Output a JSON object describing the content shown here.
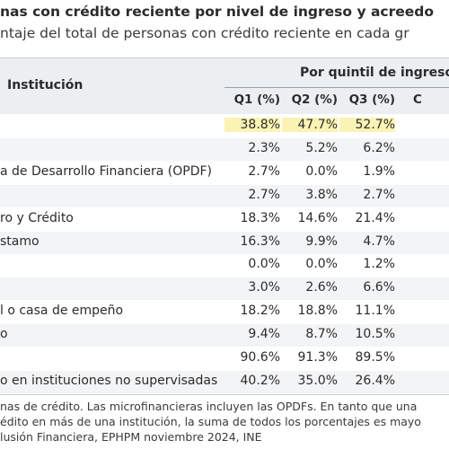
{
  "title": "nas con crédito reciente por nivel de ingreso y acreedo",
  "subtitle": "ntaje del total de personas con crédito reciente en cada gr",
  "header": {
    "institucion": "Institución",
    "quintil": "Por quintil de ingreso",
    "columns": [
      "Q1 (%)",
      "Q2 (%)",
      "Q3 (%)",
      "C"
    ]
  },
  "rows": [
    {
      "name": "",
      "values": [
        "38.8%",
        "47.7%",
        "52.7%"
      ],
      "highlight": true
    },
    {
      "name": "",
      "values": [
        "2.3%",
        "5.2%",
        "6.2%"
      ]
    },
    {
      "name": "a de Desarrollo Financiera (OPDF)",
      "values": [
        "2.7%",
        "0.0%",
        "1.9%"
      ]
    },
    {
      "name": "",
      "values": [
        "2.7%",
        "3.8%",
        "2.7%"
      ]
    },
    {
      "name": "ro y Crédito",
      "values": [
        "18.3%",
        "14.6%",
        "21.4%"
      ]
    },
    {
      "name": "stamo",
      "values": [
        "16.3%",
        "9.9%",
        "4.7%"
      ]
    },
    {
      "name": "",
      "values": [
        "0.0%",
        "0.0%",
        "1.2%"
      ]
    },
    {
      "name": "",
      "values": [
        "3.0%",
        "2.6%",
        "6.6%"
      ]
    },
    {
      "name": "l o casa de empeño",
      "values": [
        "18.2%",
        "18.8%",
        "11.1%"
      ]
    },
    {
      "name": "o",
      "values": [
        "9.4%",
        "8.7%",
        "10.5%"
      ]
    },
    {
      "name": "",
      "values": [
        "90.6%",
        "91.3%",
        "89.5%"
      ]
    },
    {
      "name": "o en instituciones no supervisadas",
      "values": [
        "40.2%",
        "35.0%",
        "26.4%"
      ]
    }
  ],
  "notes": [
    "nas de crédito. Las microfinancieras incluyen las OPDFs. En tanto que una",
    "édito en más de una institución, la suma de todos los porcentajes es mayo",
    "lusión Financiera, EPHPM noviembre 2024, INE"
  ]
}
